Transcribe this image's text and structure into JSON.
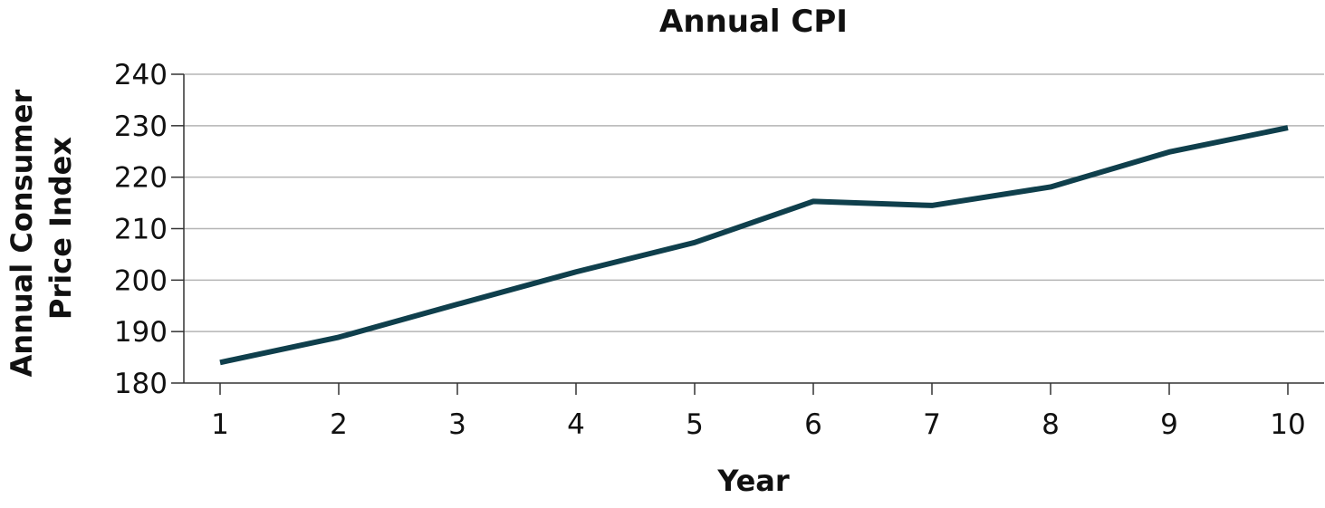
{
  "chart_data": {
    "type": "line",
    "title": "Annual CPI",
    "xlabel": "Year",
    "ylabel": [
      "Annual Consumer",
      "Price Index"
    ],
    "x": [
      1,
      2,
      3,
      4,
      5,
      6,
      7,
      8,
      9,
      10
    ],
    "series": [
      {
        "values": [
          184.0,
          188.9,
          195.3,
          201.6,
          207.3,
          215.3,
          214.5,
          218.1,
          224.9,
          229.6
        ]
      }
    ],
    "xticks": [
      "1",
      "2",
      "3",
      "4",
      "5",
      "6",
      "7",
      "8",
      "9",
      "10"
    ],
    "yticks": [
      "180",
      "190",
      "200",
      "210",
      "220",
      "230",
      "240"
    ],
    "ylim": [
      180,
      240
    ],
    "xlim": [
      1,
      10
    ],
    "grid": "horizontal",
    "legend": "none",
    "colors": {
      "line": "#0f3f4c",
      "grid": "#b5b5b5",
      "axis": "#333333"
    }
  }
}
